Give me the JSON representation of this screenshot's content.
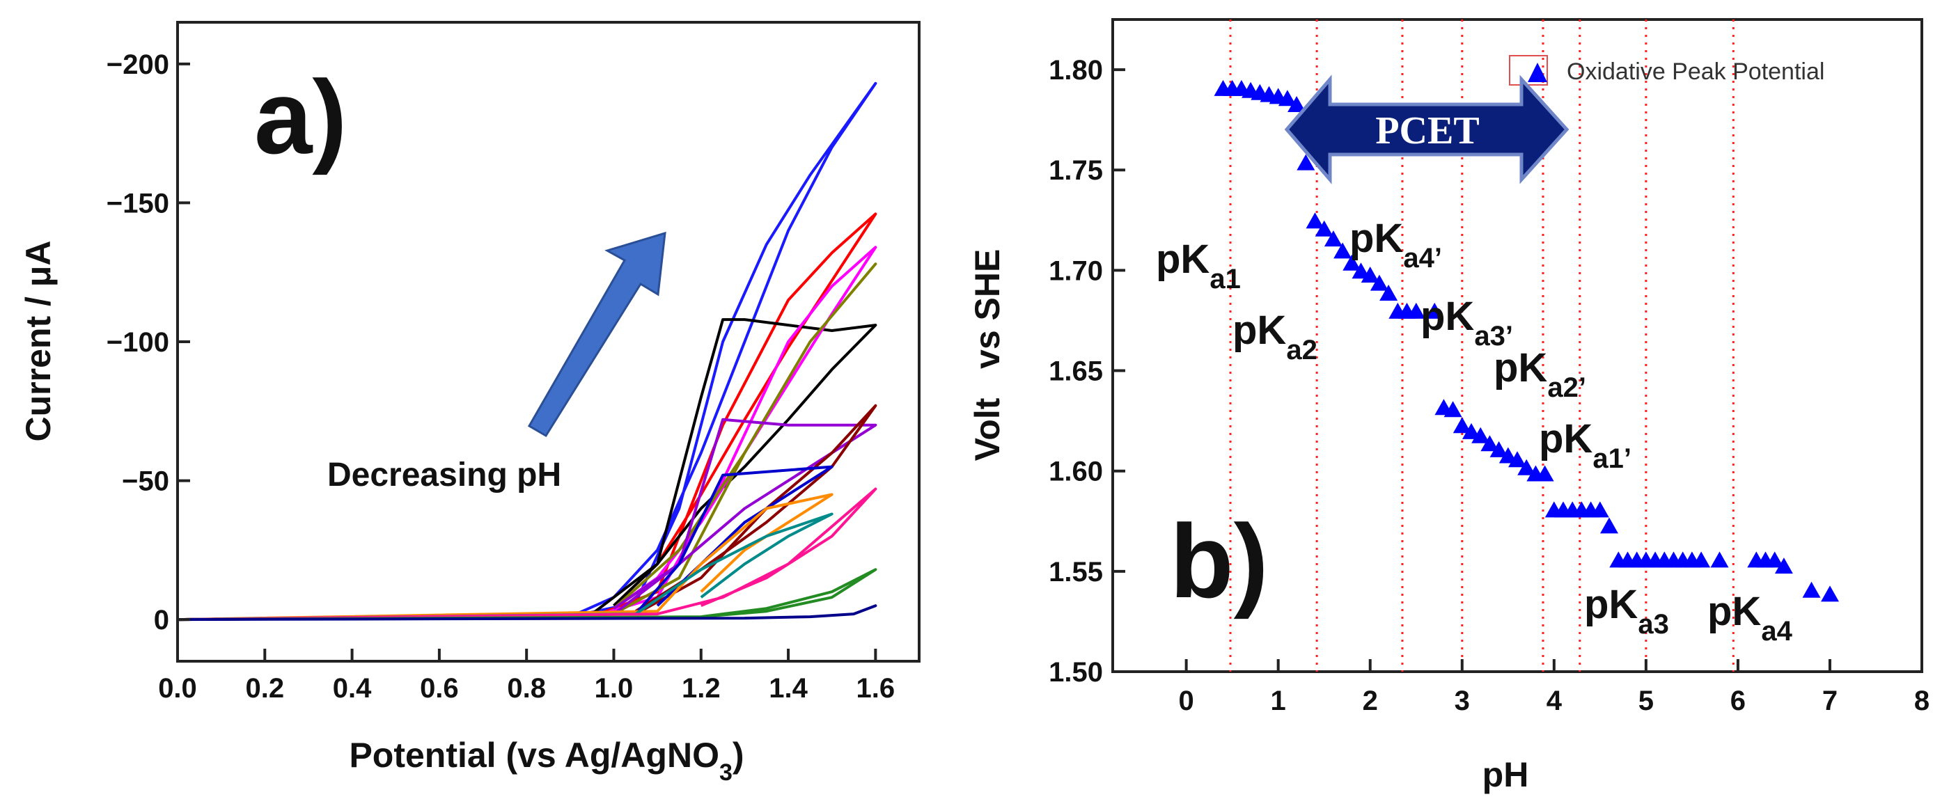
{
  "chart_data": [
    {
      "type": "line",
      "panel_label": "a)",
      "xlabel": "Potential (vs Ag/AgNO",
      "xlabel_sub": "3",
      "xlabel_end": ")",
      "ylabel": "Current / μA",
      "xlim": [
        0.0,
        1.7
      ],
      "ylim": [
        15,
        -215
      ],
      "x_ticks": [
        "0.0",
        "0.2",
        "0.4",
        "0.6",
        "0.8",
        "1.0",
        "1.2",
        "1.4",
        "1.6"
      ],
      "y_ticks": [
        "0",
        "−50",
        "−100",
        "−150",
        "−200"
      ],
      "annotation": "Decreasing pH",
      "series": [
        {
          "color": "#1a1aff",
          "x": [
            0,
            0.9,
            1.05,
            1.15,
            1.25,
            1.35,
            1.45,
            1.6,
            1.5,
            1.4,
            1.3,
            1.2,
            1.1,
            1.0,
            0.9
          ],
          "values": [
            0,
            -1,
            -6,
            -40,
            -100,
            -135,
            -160,
            -193,
            -170,
            -140,
            -100,
            -60,
            -25,
            -8,
            -1
          ]
        },
        {
          "color": "#ff0000",
          "x": [
            0,
            0.95,
            1.1,
            1.25,
            1.4,
            1.5,
            1.6,
            1.5,
            1.4,
            1.3,
            1.2,
            1.1,
            1.0
          ],
          "values": [
            0,
            -1,
            -10,
            -70,
            -115,
            -132,
            -146,
            -122,
            -98,
            -72,
            -45,
            -20,
            -5
          ]
        },
        {
          "color": "#000000",
          "x": [
            0,
            0.95,
            1.1,
            1.2,
            1.25,
            1.3,
            1.4,
            1.5,
            1.6,
            1.5,
            1.4,
            1.3,
            1.2,
            1.1,
            1.0
          ],
          "values": [
            0,
            -2,
            -20,
            -80,
            -108,
            -108,
            -106,
            -104,
            -106,
            -90,
            -72,
            -55,
            -40,
            -20,
            -5
          ]
        },
        {
          "color": "#ff00ff",
          "x": [
            0,
            0.95,
            1.1,
            1.25,
            1.4,
            1.5,
            1.6,
            1.5,
            1.4,
            1.3,
            1.2,
            1.1,
            1.0
          ],
          "values": [
            0,
            -1,
            -8,
            -50,
            -100,
            -120,
            -134,
            -110,
            -85,
            -60,
            -35,
            -15,
            -4
          ]
        },
        {
          "color": "#808000",
          "x": [
            0,
            1.0,
            1.15,
            1.3,
            1.45,
            1.6,
            1.45,
            1.3,
            1.15,
            1.0
          ],
          "values": [
            0,
            -2,
            -15,
            -60,
            -100,
            -128,
            -100,
            -60,
            -25,
            -4
          ]
        },
        {
          "color": "#9400d3",
          "x": [
            0,
            1.0,
            1.15,
            1.25,
            1.4,
            1.6,
            1.45,
            1.3,
            1.15,
            1.0
          ],
          "values": [
            0,
            -2,
            -20,
            -72,
            -70,
            -70,
            -55,
            -40,
            -20,
            -4
          ]
        },
        {
          "color": "#8b0000",
          "x": [
            0,
            1.05,
            1.2,
            1.35,
            1.5,
            1.6,
            1.5,
            1.35,
            1.2,
            1.05
          ],
          "values": [
            0,
            -2,
            -15,
            -40,
            -60,
            -77,
            -55,
            -35,
            -18,
            -3
          ]
        },
        {
          "color": "#0000cd",
          "x": [
            0,
            1.05,
            1.15,
            1.25,
            1.5,
            1.4,
            1.3,
            1.2,
            1.1
          ],
          "values": [
            0,
            -2,
            -20,
            -52,
            -55,
            -45,
            -35,
            -20,
            -5
          ]
        },
        {
          "color": "#ff8c00",
          "x": [
            0,
            1.1,
            1.2,
            1.35,
            1.5,
            1.4,
            1.3,
            1.2
          ],
          "values": [
            0,
            -3,
            -20,
            -40,
            -45,
            -35,
            -25,
            -10
          ]
        },
        {
          "color": "#008b8b",
          "x": [
            0,
            1.05,
            1.2,
            1.35,
            1.5,
            1.4,
            1.3,
            1.2
          ],
          "values": [
            0,
            -2,
            -18,
            -30,
            -38,
            -30,
            -20,
            -8
          ]
        },
        {
          "color": "#ff1493",
          "x": [
            0,
            1.1,
            1.25,
            1.4,
            1.6,
            1.5,
            1.35,
            1.2
          ],
          "values": [
            0,
            -2,
            -8,
            -20,
            -47,
            -30,
            -15,
            -5
          ]
        },
        {
          "color": "#228b22",
          "x": [
            0,
            1.2,
            1.35,
            1.5,
            1.6,
            1.5,
            1.35,
            1.2
          ],
          "values": [
            0,
            -1,
            -3,
            -8,
            -18,
            -10,
            -4,
            -1
          ]
        },
        {
          "color": "#00008b",
          "x": [
            0,
            1.3,
            1.45,
            1.55,
            1.6,
            1.55,
            1.45,
            1.3
          ],
          "values": [
            0,
            -0.5,
            -1,
            -2,
            -5,
            -2,
            -1,
            -0.5
          ]
        }
      ]
    },
    {
      "type": "scatter",
      "panel_label": "b)",
      "xlabel": "pH",
      "ylabel": "Volt   vs SHE",
      "xlim": [
        -0.8,
        8.0
      ],
      "ylim": [
        1.5,
        1.825
      ],
      "x_ticks": [
        "0",
        "1",
        "2",
        "3",
        "4",
        "5",
        "6",
        "7",
        "8"
      ],
      "y_ticks": [
        "1.50",
        "1.55",
        "1.60",
        "1.65",
        "1.70",
        "1.75",
        "1.80"
      ],
      "legend": "Oxidative Peak Potential",
      "legend_position": "top-right",
      "arrow_label": "PCET",
      "marker_color": "#0000ff",
      "vlines": [
        0.48,
        1.42,
        2.35,
        3.0,
        3.88,
        4.28,
        5.0,
        5.95
      ],
      "x": [
        0.4,
        0.5,
        0.6,
        0.7,
        0.8,
        0.9,
        1.0,
        1.1,
        1.2,
        1.3,
        1.4,
        1.5,
        1.6,
        1.7,
        1.8,
        1.9,
        2.0,
        2.1,
        2.2,
        2.3,
        2.4,
        2.5,
        2.7,
        2.8,
        2.9,
        3.0,
        3.1,
        3.2,
        3.3,
        3.4,
        3.5,
        3.6,
        3.7,
        3.8,
        3.9,
        4.0,
        4.1,
        4.2,
        4.3,
        4.4,
        4.5,
        4.6,
        4.7,
        4.8,
        4.9,
        5.0,
        5.1,
        5.2,
        5.3,
        5.4,
        5.5,
        5.6,
        5.8,
        6.2,
        6.3,
        6.4,
        6.5,
        6.8,
        7.0
      ],
      "values": [
        1.79,
        1.79,
        1.79,
        1.789,
        1.788,
        1.787,
        1.786,
        1.785,
        1.782,
        1.753,
        1.724,
        1.72,
        1.715,
        1.709,
        1.703,
        1.699,
        1.697,
        1.693,
        1.688,
        1.679,
        1.679,
        1.679,
        1.679,
        1.631,
        1.63,
        1.622,
        1.619,
        1.617,
        1.613,
        1.61,
        1.607,
        1.605,
        1.601,
        1.598,
        1.598,
        1.58,
        1.58,
        1.58,
        1.58,
        1.58,
        1.58,
        1.572,
        1.555,
        1.555,
        1.555,
        1.555,
        1.555,
        1.555,
        1.555,
        1.555,
        1.555,
        1.555,
        1.555,
        1.555,
        1.555,
        1.555,
        1.552,
        1.54,
        1.538
      ],
      "pka_labels": [
        {
          "base": "pK",
          "sub": "a1"
        },
        {
          "base": "pK",
          "sub": "a2"
        },
        {
          "base": "pK",
          "sub": "a4’"
        },
        {
          "base": "pK",
          "sub": "a3’"
        },
        {
          "base": "pK",
          "sub": "a2’"
        },
        {
          "base": "pK",
          "sub": "a1’"
        },
        {
          "base": "pK",
          "sub": "a3"
        },
        {
          "base": "pK",
          "sub": "a4"
        }
      ]
    }
  ]
}
